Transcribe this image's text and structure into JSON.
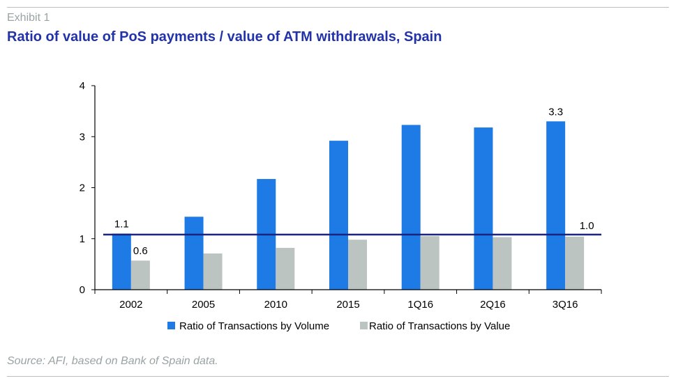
{
  "header": {
    "exhibit": "Exhibit 1",
    "title": "Ratio of value of PoS payments / value of ATM withdrawals, Spain"
  },
  "source": "Source: AFI, based on Bank of Spain data.",
  "chart_data": {
    "type": "bar",
    "categories": [
      "2002",
      "2005",
      "2010",
      "2015",
      "1Q16",
      "2Q16",
      "3Q16"
    ],
    "series": [
      {
        "name": "Ratio of Transactions by Volume",
        "color": "#1e7be6",
        "values": [
          1.1,
          1.43,
          2.17,
          2.92,
          3.23,
          3.18,
          3.3
        ]
      },
      {
        "name": "Ratio of Transactions by Value",
        "color": "#bcc4c2",
        "values": [
          0.57,
          0.71,
          0.82,
          0.98,
          1.05,
          1.03,
          1.04
        ]
      }
    ],
    "reference_line": {
      "value": 1.08,
      "color": "#1a237e"
    },
    "data_labels": [
      {
        "series": 0,
        "index": 0,
        "text": "1.1"
      },
      {
        "series": 1,
        "index": 0,
        "text": "0.6"
      },
      {
        "series": 0,
        "index": 6,
        "text": "3.3"
      },
      {
        "series": 1,
        "index": 6,
        "text": "1.0"
      }
    ],
    "y_ticks": [
      "0",
      "1",
      "2",
      "3",
      "4"
    ],
    "ylim": [
      0,
      4
    ],
    "legend_position": "bottom",
    "grid": false
  }
}
